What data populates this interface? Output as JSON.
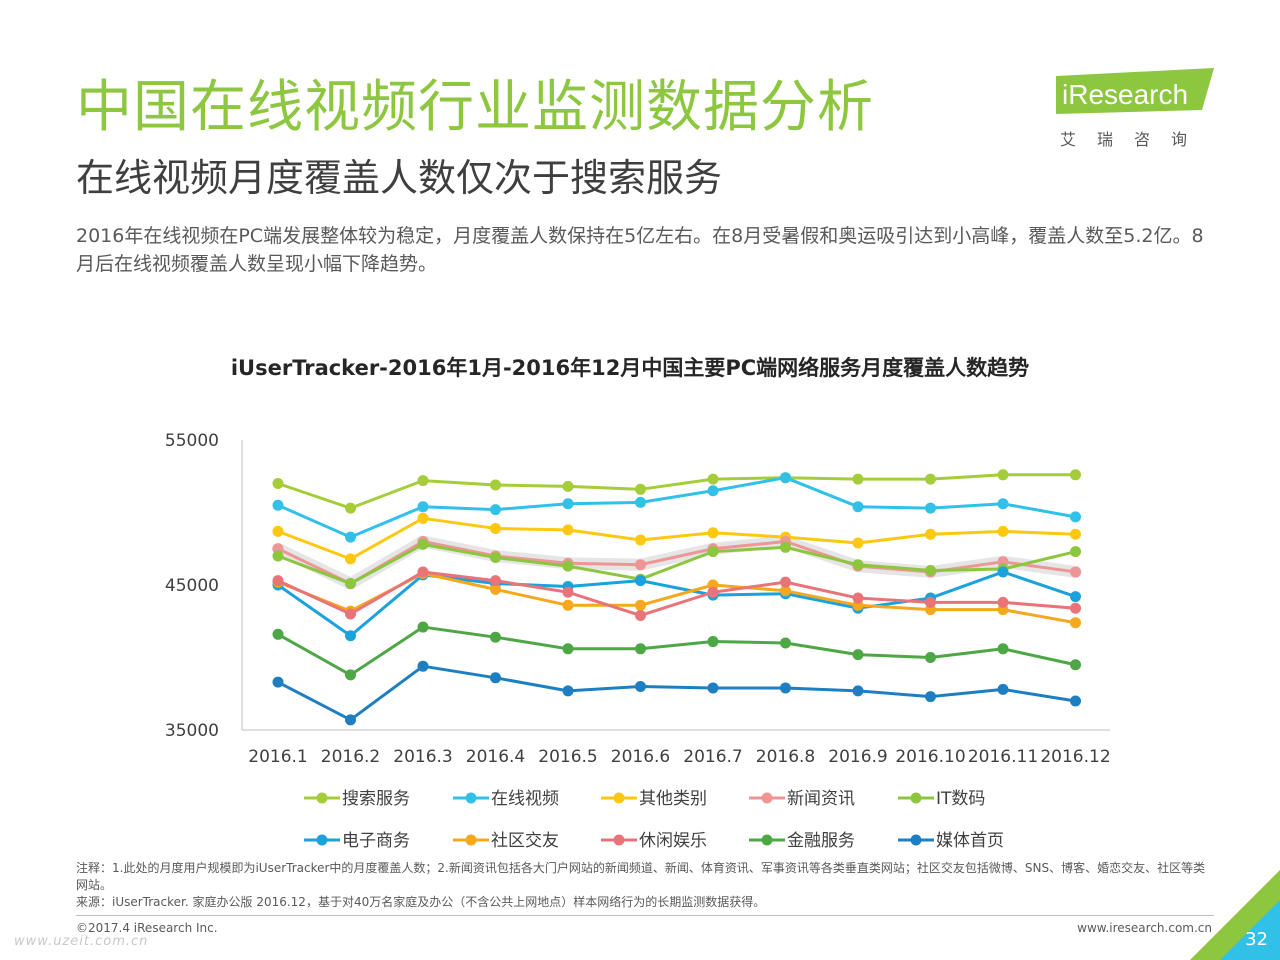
{
  "header": {
    "title": "中国在线视频行业监测数据分析",
    "subtitle": "在线视频月度覆盖人数仅次于搜索服务",
    "description": "2016年在线视频在PC端发展整体较为稳定，月度覆盖人数保持在5亿左右。在8月受暑假和奥运吸引达到小高峰，覆盖人数至5.2亿。8月后在线视频覆盖人数呈现小幅下降趋势。"
  },
  "logo": {
    "brand": "iResearch",
    "cn": "艾瑞咨询"
  },
  "chart_data": {
    "type": "line",
    "title": "iUserTracker-2016年1月-2016年12月中国主要PC端网络服务月度覆盖人数趋势",
    "categories": [
      "2016.1",
      "2016.2",
      "2016.3",
      "2016.4",
      "2016.5",
      "2016.6",
      "2016.7",
      "2016.8",
      "2016.9",
      "2016.10",
      "2016.11",
      "2016.12"
    ],
    "ylim": [
      35000,
      55000
    ],
    "yticks": [
      "55000",
      "45000",
      "35000"
    ],
    "grid": false,
    "legend_position": "bottom",
    "series": [
      {
        "name": "搜索服务",
        "color": "#a5cd39",
        "values": [
          52000,
          50300,
          52200,
          51900,
          51800,
          51600,
          52300,
          52400,
          52300,
          52300,
          52600,
          52600
        ]
      },
      {
        "name": "在线视频",
        "color": "#31c1e8",
        "values": [
          50500,
          48300,
          50400,
          50200,
          50600,
          50700,
          51500,
          52400,
          50400,
          50300,
          50600,
          49700
        ]
      },
      {
        "name": "其他类别",
        "color": "#fdc80f",
        "values": [
          48700,
          46800,
          49600,
          48900,
          48800,
          48100,
          48600,
          48300,
          47900,
          48500,
          48700,
          48500
        ]
      },
      {
        "name": "新闻资讯",
        "color": "#ee9595",
        "values": [
          47500,
          45100,
          48000,
          47000,
          46500,
          46400,
          47500,
          48000,
          46300,
          45900,
          46600,
          45900
        ]
      },
      {
        "name": "IT数码",
        "color": "#8cc63f",
        "values": [
          47000,
          45100,
          47800,
          46900,
          46300,
          45400,
          47300,
          47600,
          46400,
          46000,
          46100,
          47300
        ]
      },
      {
        "name": "电子商务",
        "color": "#1ba1db",
        "values": [
          45000,
          41500,
          45700,
          45100,
          44900,
          45300,
          44300,
          44400,
          43400,
          44100,
          45900,
          44200
        ]
      },
      {
        "name": "社区交友",
        "color": "#f6a81c",
        "values": [
          45200,
          43200,
          45800,
          44700,
          43600,
          43600,
          45000,
          44600,
          43600,
          43300,
          43300,
          42400
        ]
      },
      {
        "name": "休闲娱乐",
        "color": "#e87479",
        "values": [
          45300,
          43000,
          45900,
          45300,
          44500,
          42900,
          44500,
          45200,
          44100,
          43800,
          43800,
          43400
        ]
      },
      {
        "name": "金融服务",
        "color": "#4da744",
        "values": [
          41600,
          38800,
          42100,
          41400,
          40600,
          40600,
          41100,
          41000,
          40200,
          40000,
          40600,
          39500
        ]
      },
      {
        "name": "媒体首页",
        "color": "#1d7fc2",
        "values": [
          38300,
          35700,
          39400,
          38600,
          37700,
          38000,
          37900,
          37900,
          37700,
          37300,
          37800,
          37000
        ]
      }
    ]
  },
  "notes": {
    "line1": "注释：1.此处的月度用户规模即为iUserTracker中的月度覆盖人数；2.新闻资讯包括各大门户网站的新闻频道、新闻、体育资讯、军事资讯等各类垂直类网站；社区交友包括微博、SNS、博客、婚恋交友、社区等类网站。",
    "line2": "来源：iUserTracker. 家庭办公版 2016.12，基于对40万名家庭及办公（不含公共上网地点）样本网络行为的长期监测数据获得。"
  },
  "footer": {
    "copyright": "©2017.4 iResearch Inc.",
    "website": "www.iresearch.com.cn",
    "page": "32",
    "watermark": "www.uzeit.com.cn"
  }
}
